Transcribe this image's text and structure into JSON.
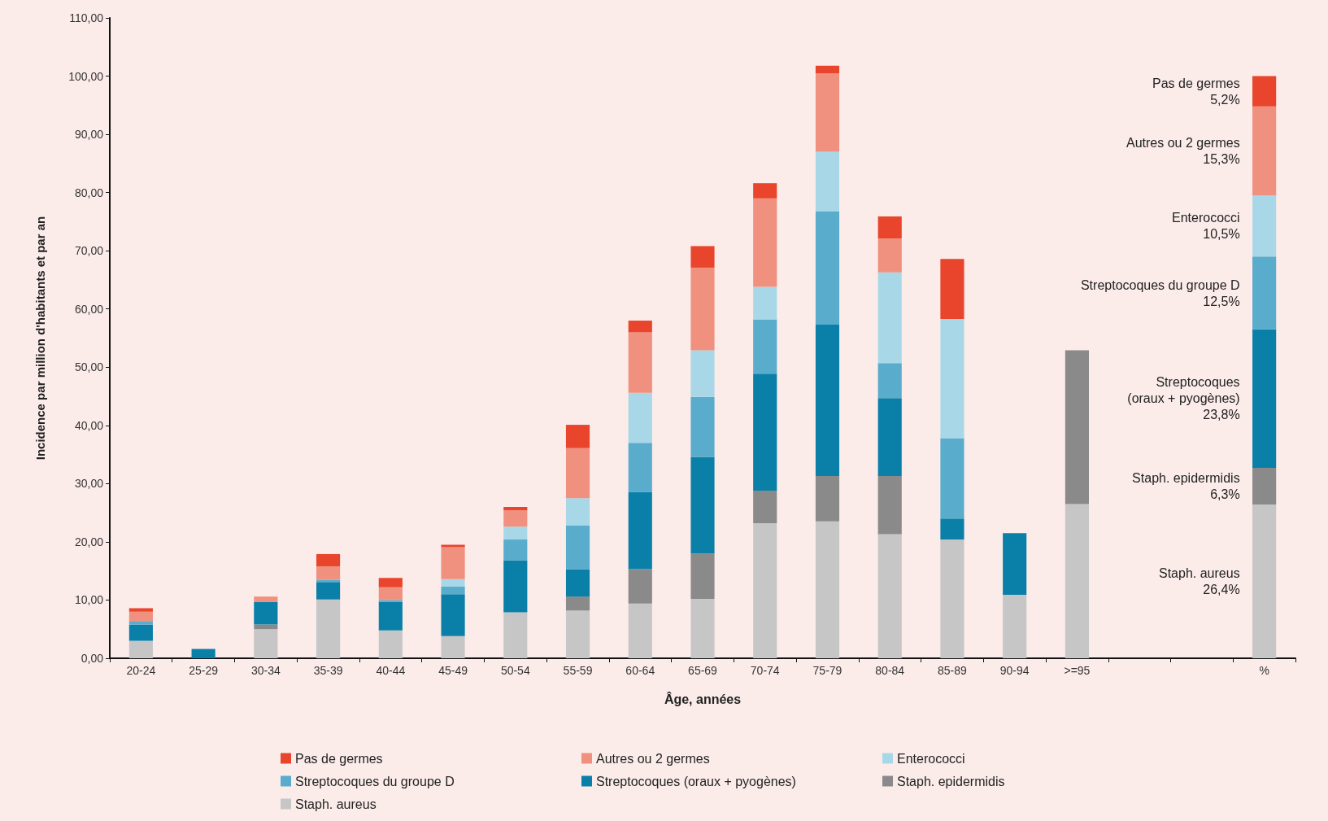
{
  "chart_data": {
    "type": "bar",
    "stacked": true,
    "xlabel": "Âge, années",
    "ylabel": "Incidence par million d'habitants et par an",
    "categories": [
      "20-24",
      "25-29",
      "30-34",
      "35-39",
      "40-44",
      "45-49",
      "50-54",
      "55-59",
      "60-64",
      "65-69",
      "70-74",
      "75-79",
      "80-84",
      "85-89",
      "90-94",
      ">=95",
      null,
      null,
      "%"
    ],
    "series": [
      {
        "name": "Staph. aureus",
        "color": "#c6c6c6",
        "values": [
          3.0,
          0,
          5.0,
          10.1,
          4.8,
          3.8,
          7.9,
          8.2,
          9.4,
          10.2,
          23.2,
          23.5,
          21.3,
          20.4,
          10.9,
          26.5,
          null,
          null,
          26.4
        ]
      },
      {
        "name": "Staph. epidermidis",
        "color": "#8a8a8a",
        "values": [
          0,
          0,
          0.8,
          0,
          0,
          0,
          0,
          2.4,
          5.9,
          7.8,
          5.6,
          7.8,
          10.0,
          0,
          0,
          26.4,
          null,
          null,
          6.3
        ]
      },
      {
        "name": "Streptocoques (oraux + pyogènes)",
        "color": "#0a80a8",
        "values": [
          2.8,
          1.6,
          3.9,
          3.0,
          4.9,
          7.2,
          8.9,
          4.7,
          13.3,
          16.6,
          20.1,
          26.0,
          13.4,
          3.6,
          10.6,
          0,
          null,
          null,
          23.8
        ]
      },
      {
        "name": "Streptocoques du groupe D",
        "color": "#5aaccc",
        "values": [
          0.6,
          0,
          0,
          0.4,
          0.3,
          1.3,
          3.6,
          7.5,
          8.4,
          10.3,
          9.3,
          19.5,
          6.0,
          13.8,
          0,
          0,
          null,
          null,
          12.5
        ]
      },
      {
        "name": "Enterococci",
        "color": "#a8d8e8",
        "values": [
          0,
          0,
          0,
          0,
          0,
          1.3,
          2.2,
          4.7,
          8.6,
          8.0,
          5.6,
          10.2,
          15.6,
          20.5,
          0,
          0,
          null,
          null,
          10.5
        ]
      },
      {
        "name": "Autres ou 2 germes",
        "color": "#f0907e",
        "values": [
          1.6,
          0,
          0.9,
          2.3,
          2.2,
          5.5,
          2.8,
          8.6,
          10.4,
          14.2,
          15.2,
          13.5,
          5.8,
          0,
          0,
          0,
          null,
          null,
          15.3
        ]
      },
      {
        "name": "Pas de germes",
        "color": "#e8452c",
        "values": [
          0.6,
          0,
          0,
          2.1,
          1.6,
          0.4,
          0.6,
          4.0,
          2.0,
          3.7,
          2.6,
          1.3,
          3.8,
          10.3,
          0,
          0,
          null,
          null,
          5.2
        ]
      }
    ],
    "ylim": [
      0,
      110
    ],
    "yticks": [
      {
        "value": 0,
        "label": "0,00"
      },
      {
        "value": 10,
        "label": "10,00"
      },
      {
        "value": 20,
        "label": "20,00"
      },
      {
        "value": 30,
        "label": "30,00"
      },
      {
        "value": 40,
        "label": "40,00"
      },
      {
        "value": 50,
        "label": "50,00"
      },
      {
        "value": 60,
        "label": "60,00"
      },
      {
        "value": 70,
        "label": "70,00"
      },
      {
        "value": 80,
        "label": "80,00"
      },
      {
        "value": 90,
        "label": "90,00"
      },
      {
        "value": 100,
        "label": "100,00"
      },
      {
        "value": 110,
        "label": "110,00"
      }
    ],
    "annotations": [
      "Pas de germes\n5,2%",
      "Autres ou 2 germes\n15,3%",
      "Enterococci\n10,5%",
      "Streptocoques du groupe D\n12,5%",
      "Streptocoques\n(oraux + pyogènes)\n23,8%",
      "Staph. epidermidis\n6,3%",
      "Staph. aureus\n26,4%"
    ],
    "grid": false,
    "legend": "bottom"
  }
}
